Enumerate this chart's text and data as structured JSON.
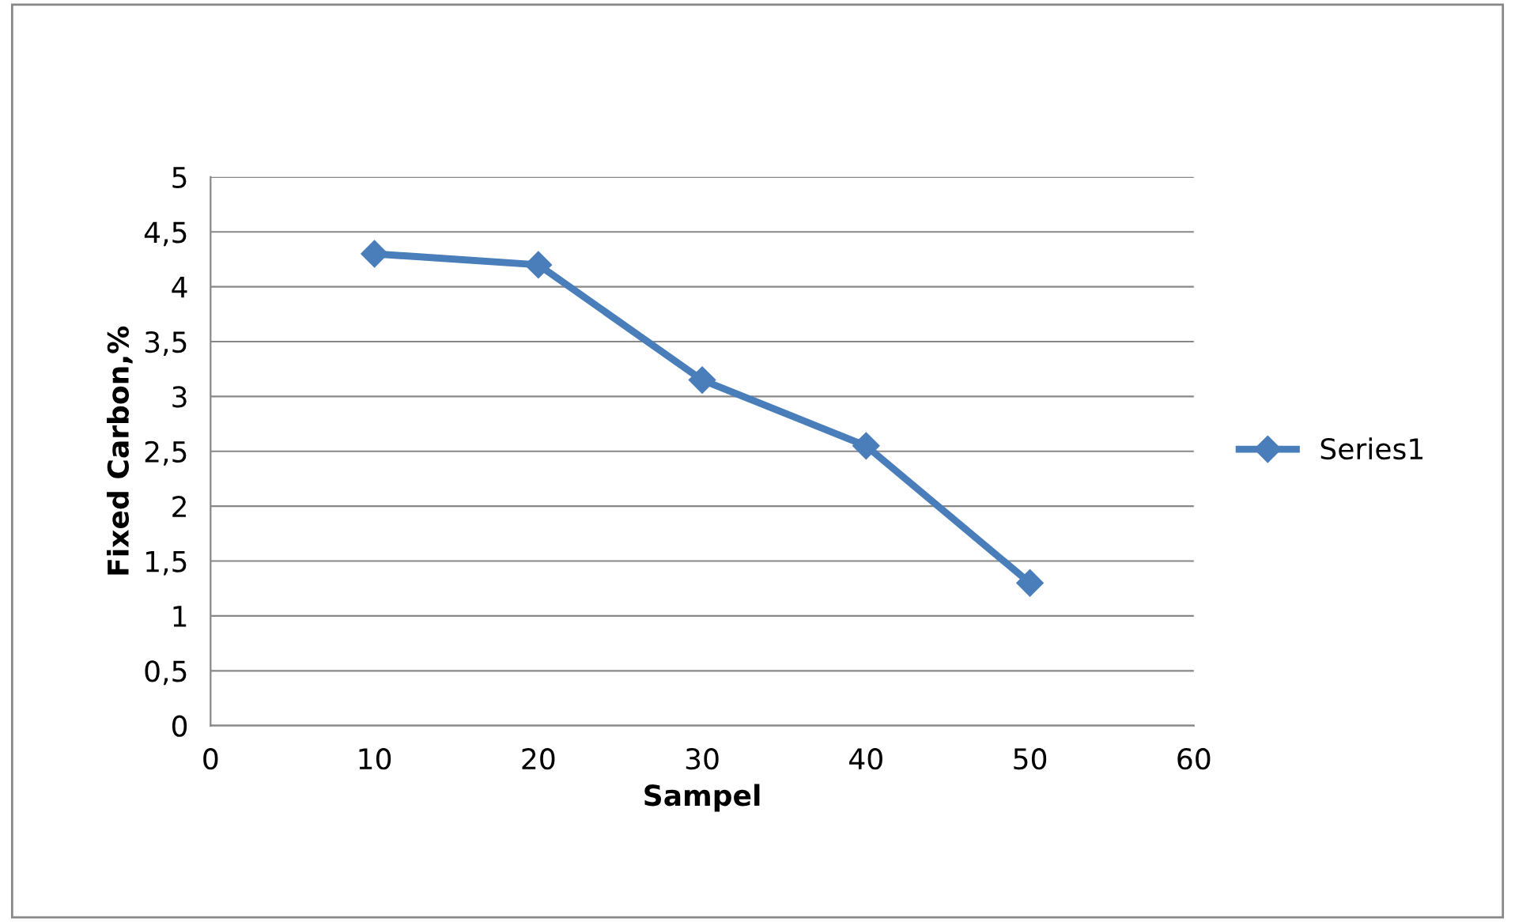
{
  "chart_data": {
    "type": "line",
    "xlabel": "Sampel",
    "ylabel": "Fixed Carbon,%",
    "x": [
      10,
      20,
      30,
      40,
      50
    ],
    "series": [
      {
        "name": "Series1",
        "color": "#4a7ebb",
        "values": [
          4.3,
          4.2,
          3.15,
          2.55,
          1.3
        ]
      }
    ],
    "xlim": [
      0,
      60
    ],
    "xticks": [
      0,
      10,
      20,
      30,
      40,
      50,
      60
    ],
    "ylim": [
      0,
      5
    ],
    "yticks": [
      0,
      {
        "value": 0.5,
        "label": "0,5"
      },
      1,
      {
        "value": 1.5,
        "label": "1,5"
      },
      2,
      {
        "value": 2.5,
        "label": "2,5"
      },
      3,
      {
        "value": 3.5,
        "label": "3,5"
      },
      4,
      {
        "value": 4.5,
        "label": "4,5"
      },
      5
    ],
    "grid": "y",
    "legend": "right",
    "marker": "diamond",
    "line_style": "solid"
  }
}
